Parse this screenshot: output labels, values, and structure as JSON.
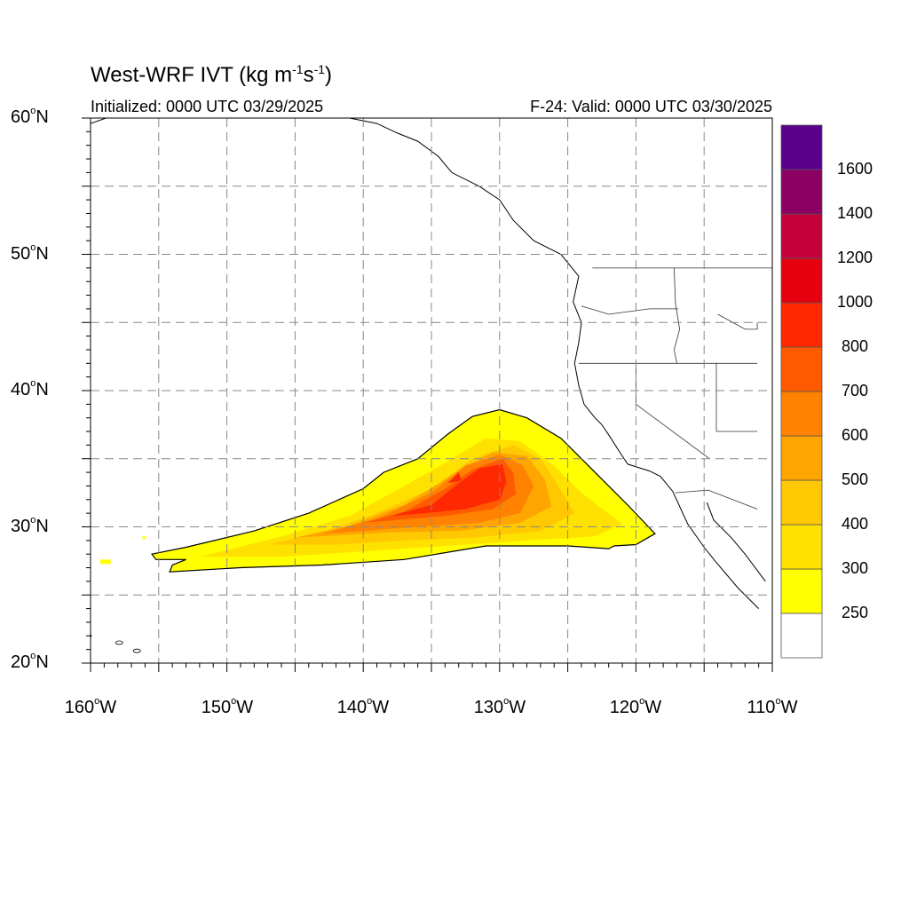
{
  "header": {
    "title_main": "West-WRF IVT (kg m",
    "title_exp1": "-1",
    "title_mid": "s",
    "title_exp2": "-1",
    "title_end": ")",
    "initialized": "Initialized: 0000 UTC 03/29/2025",
    "valid": "F-24: Valid: 0000 UTC 03/30/2025"
  },
  "axes": {
    "lat_labels": [
      {
        "deg": "60",
        "hemi": "N"
      },
      {
        "deg": "50",
        "hemi": "N"
      },
      {
        "deg": "40",
        "hemi": "N"
      },
      {
        "deg": "30",
        "hemi": "N"
      },
      {
        "deg": "20",
        "hemi": "N"
      }
    ],
    "lon_labels": [
      {
        "deg": "160",
        "hemi": "W"
      },
      {
        "deg": "150",
        "hemi": "W"
      },
      {
        "deg": "140",
        "hemi": "W"
      },
      {
        "deg": "130",
        "hemi": "W"
      },
      {
        "deg": "120",
        "hemi": "W"
      },
      {
        "deg": "110",
        "hemi": "W"
      }
    ],
    "lat_range": [
      20,
      60
    ],
    "lon_range": [
      -160,
      -110
    ],
    "grid": true
  },
  "colorbar": {
    "levels": [
      "250",
      "300",
      "400",
      "500",
      "600",
      "700",
      "800",
      "1000",
      "1200",
      "1400",
      "1600"
    ],
    "colors": [
      "#ffffff",
      "#ffff00",
      "#ffe100",
      "#ffc800",
      "#ffa500",
      "#ff8200",
      "#ff5a00",
      "#ff2800",
      "#e6000f",
      "#c3003c",
      "#8c0064",
      "#5a008c"
    ]
  },
  "map_data": {
    "type": "filled-contour",
    "variable": "IVT",
    "peak_region": {
      "lon": -132.5,
      "lat": 33.5
    },
    "ivt_plume": {
      "outline": [
        [
          -155.5,
          28
        ],
        [
          -153,
          28.5
        ],
        [
          -148,
          29.7
        ],
        [
          -144,
          31
        ],
        [
          -140,
          32.8
        ],
        [
          -138.5,
          34
        ],
        [
          -136,
          35
        ],
        [
          -133.8,
          36.8
        ],
        [
          -132,
          38.1
        ],
        [
          -130,
          38.6
        ],
        [
          -128,
          38
        ],
        [
          -125.5,
          36.5
        ],
        [
          -123,
          34
        ],
        [
          -120.5,
          31.5
        ],
        [
          -118.6,
          29.5
        ],
        [
          -120,
          28.7
        ],
        [
          -121.6,
          28.6
        ],
        [
          -122,
          28.4
        ],
        [
          -125,
          28.6
        ],
        [
          -131,
          28.6
        ],
        [
          -137,
          27.6
        ],
        [
          -143,
          27.2
        ],
        [
          -149,
          27
        ],
        [
          -154.2,
          26.7
        ],
        [
          -154,
          27.2
        ],
        [
          -153,
          27.6
        ],
        [
          -155.2,
          27.6
        ]
      ],
      "core_300": [
        [
          -152,
          27.8
        ],
        [
          -146,
          29.3
        ],
        [
          -141,
          30.8
        ],
        [
          -137,
          33
        ],
        [
          -134,
          34.7
        ],
        [
          -131,
          36.5
        ],
        [
          -128.5,
          36.3
        ],
        [
          -126,
          34.5
        ],
        [
          -124,
          32.5
        ],
        [
          -121,
          30.2
        ],
        [
          -123,
          29.3
        ],
        [
          -128,
          29
        ],
        [
          -134,
          28.6
        ],
        [
          -140,
          28.2
        ],
        [
          -146,
          27.8
        ]
      ],
      "core_400": [
        [
          -147,
          28.7
        ],
        [
          -143,
          29.6
        ],
        [
          -139,
          31
        ],
        [
          -135,
          32.8
        ],
        [
          -132,
          35
        ],
        [
          -129,
          36
        ],
        [
          -127,
          35
        ],
        [
          -126,
          33.5
        ],
        [
          -124.5,
          31
        ],
        [
          -127,
          29.7
        ],
        [
          -132,
          29.2
        ],
        [
          -137,
          29
        ],
        [
          -142,
          28.7
        ]
      ],
      "core_500": [
        [
          -145,
          29.2
        ],
        [
          -141,
          30.1
        ],
        [
          -137,
          31.6
        ],
        [
          -133.5,
          33.8
        ],
        [
          -130.5,
          35.5
        ],
        [
          -128,
          35.2
        ],
        [
          -126.7,
          33.5
        ],
        [
          -126.2,
          31.5
        ],
        [
          -128.5,
          30.3
        ],
        [
          -133,
          29.7
        ],
        [
          -138,
          29.6
        ]
      ],
      "core_600": [
        [
          -143,
          29.5
        ],
        [
          -139,
          30.6
        ],
        [
          -135,
          32.5
        ],
        [
          -132.5,
          34.5
        ],
        [
          -130,
          35.3
        ],
        [
          -128.3,
          34.5
        ],
        [
          -127.5,
          33
        ],
        [
          -128.5,
          31
        ],
        [
          -131.5,
          30.3
        ],
        [
          -136,
          30
        ],
        [
          -140,
          29.7
        ]
      ],
      "core_700": [
        [
          -140,
          30.3
        ],
        [
          -137,
          31.1
        ],
        [
          -134,
          32.8
        ],
        [
          -132,
          34.2
        ],
        [
          -129.8,
          35
        ],
        [
          -129,
          34
        ],
        [
          -128.8,
          32.4
        ],
        [
          -130.5,
          31.3
        ],
        [
          -134,
          30.8
        ],
        [
          -137.5,
          30.5
        ]
      ],
      "core_800": [
        [
          -138,
          30.8
        ],
        [
          -135,
          31.6
        ],
        [
          -133,
          33.2
        ],
        [
          -131.5,
          34.3
        ],
        [
          -129.8,
          34.6
        ],
        [
          -129.5,
          33.3
        ],
        [
          -130,
          32
        ],
        [
          -132.5,
          31.3
        ],
        [
          -135.5,
          31
        ]
      ],
      "core_1000": [
        [
          -133.8,
          33.2
        ],
        [
          -133,
          34
        ],
        [
          -132.8,
          33.4
        ]
      ]
    }
  },
  "coastline": {
    "north_america": [
      [
        -164,
        59
      ],
      [
        -160,
        59.6
      ],
      [
        -156,
        61
      ],
      [
        -152,
        61
      ],
      [
        -150,
        61.2
      ],
      [
        -147,
        60.8
      ],
      [
        -144.5,
        60.2
      ],
      [
        -141,
        60
      ],
      [
        -139,
        59.6
      ],
      [
        -137.5,
        58.9
      ],
      [
        -136,
        58.3
      ],
      [
        -134.5,
        57.2
      ],
      [
        -133.5,
        56
      ],
      [
        -131.5,
        55
      ],
      [
        -130,
        54
      ],
      [
        -129,
        52.5
      ],
      [
        -127.5,
        51
      ],
      [
        -125.5,
        50
      ],
      [
        -124.2,
        48.4
      ],
      [
        -124.6,
        46.5
      ],
      [
        -124,
        45
      ],
      [
        -124.2,
        43.5
      ],
      [
        -124.5,
        42
      ],
      [
        -124.2,
        40.4
      ],
      [
        -123.8,
        39
      ],
      [
        -123,
        38
      ],
      [
        -122.5,
        37.5
      ],
      [
        -121.9,
        36.6
      ],
      [
        -121.2,
        35.5
      ],
      [
        -120.6,
        34.6
      ],
      [
        -119,
        34.1
      ],
      [
        -118.2,
        33.7
      ],
      [
        -117.3,
        32.6
      ],
      [
        -116.8,
        31.5
      ],
      [
        -116.2,
        30.2
      ],
      [
        -115,
        28.5
      ],
      [
        -114.2,
        27.5
      ],
      [
        -112.5,
        25.5
      ],
      [
        -111,
        24
      ]
    ],
    "gulf_of_california_east": [
      [
        -114.8,
        31.8
      ],
      [
        -114.3,
        30.5
      ],
      [
        -113,
        29.2
      ],
      [
        -112,
        28
      ],
      [
        -110.5,
        26
      ]
    ],
    "us_canada_border": [
      [
        -123.2,
        49
      ],
      [
        -95,
        49
      ]
    ],
    "or_ca_border": [
      [
        -124.2,
        42
      ],
      [
        -120,
        42
      ],
      [
        -111.1,
        42
      ]
    ],
    "ca_nv_border": [
      [
        -120,
        42
      ],
      [
        -120,
        39
      ],
      [
        -114.6,
        35
      ]
    ],
    "us_mexico_border": [
      [
        -117.1,
        32.5
      ],
      [
        -114.7,
        32.7
      ],
      [
        -111.1,
        31.3
      ]
    ],
    "wa_or_border": [
      [
        -124,
        46.2
      ],
      [
        -122,
        45.6
      ],
      [
        -119,
        46
      ],
      [
        -116.9,
        46
      ]
    ],
    "idaho_west": [
      [
        -117.2,
        49
      ],
      [
        -117.1,
        46.4
      ],
      [
        -116.8,
        44.5
      ],
      [
        -117.2,
        43
      ],
      [
        -117,
        42
      ]
    ],
    "nv_ut_border": [
      [
        -114.1,
        42
      ],
      [
        -114.1,
        37
      ]
    ],
    "az_ut_border": [
      [
        -114.1,
        37
      ],
      [
        -111.1,
        37
      ]
    ],
    "montana_sw": [
      [
        -111.1,
        45
      ],
      [
        -111.1,
        44.5
      ],
      [
        -112,
        44.5
      ],
      [
        -114,
        45.6
      ]
    ]
  }
}
